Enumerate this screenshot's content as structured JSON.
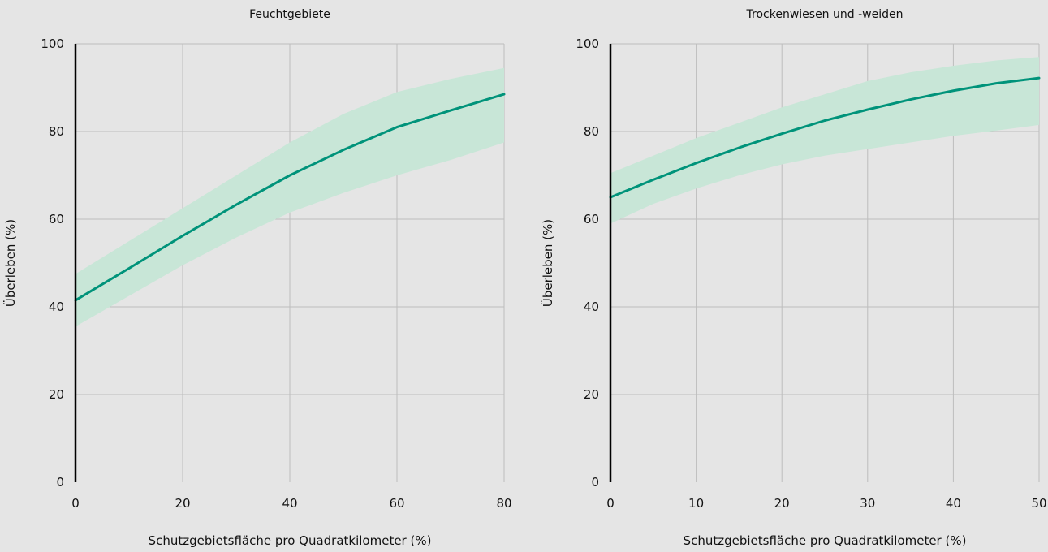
{
  "colors": {
    "background": "#e5e5e5",
    "grid": "#bdbdbd",
    "line": "#00937a",
    "band": "#c8e6d7",
    "axis": "#000000"
  },
  "chart_data": [
    {
      "type": "line",
      "title": "Feuchtgebiete",
      "xlabel": "Schutzgebietsfläche pro Quadratkilometer (%)",
      "ylabel": "Überleben (%)",
      "xlim": [
        0,
        80
      ],
      "ylim": [
        0,
        100
      ],
      "xticks": [
        0,
        20,
        40,
        60,
        80
      ],
      "yticks": [
        0,
        20,
        40,
        60,
        80,
        100
      ],
      "grid": true,
      "x": [
        0,
        10,
        20,
        30,
        40,
        50,
        60,
        70,
        80
      ],
      "series": [
        {
          "role": "estimate",
          "values": [
            41.5,
            48.8,
            56.2,
            63.3,
            70.0,
            75.8,
            81.0,
            84.8,
            88.5
          ]
        },
        {
          "role": "band-lower",
          "values": [
            35.5,
            42.5,
            49.5,
            55.8,
            61.5,
            66.0,
            70.0,
            73.5,
            77.5
          ]
        },
        {
          "role": "band-upper",
          "values": [
            47.5,
            55.0,
            62.5,
            70.0,
            77.5,
            84.0,
            89.0,
            92.0,
            94.5
          ]
        }
      ]
    },
    {
      "type": "line",
      "title": "Trockenwiesen und -weiden",
      "xlabel": "Schutzgebietsfläche pro Quadratkilometer (%)",
      "ylabel": "Überleben (%)",
      "xlim": [
        0,
        50
      ],
      "ylim": [
        0,
        100
      ],
      "xticks": [
        0,
        10,
        20,
        30,
        40,
        50
      ],
      "yticks": [
        0,
        20,
        40,
        60,
        80,
        100
      ],
      "grid": true,
      "x": [
        0,
        5,
        10,
        15,
        20,
        25,
        30,
        35,
        40,
        45,
        50
      ],
      "series": [
        {
          "role": "estimate",
          "values": [
            65.0,
            69.0,
            72.8,
            76.3,
            79.5,
            82.5,
            85.0,
            87.3,
            89.3,
            91.0,
            92.2
          ]
        },
        {
          "role": "band-lower",
          "values": [
            59.0,
            63.5,
            67.0,
            70.0,
            72.5,
            74.5,
            76.0,
            77.5,
            79.0,
            80.2,
            81.5
          ]
        },
        {
          "role": "band-upper",
          "values": [
            70.5,
            74.5,
            78.5,
            82.0,
            85.5,
            88.5,
            91.5,
            93.5,
            95.0,
            96.2,
            97.0
          ]
        }
      ]
    }
  ]
}
